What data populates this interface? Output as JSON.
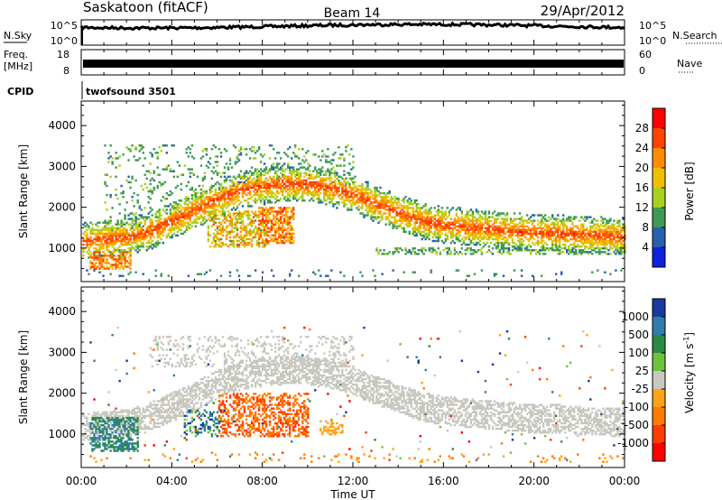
{
  "header": {
    "station": "Saskatoon (fitACF)",
    "beam": "Beam 14",
    "date": "29/Apr/2012"
  },
  "aux_panels": {
    "nsky_label": "N.Sky",
    "nsearch_label": "N.Search",
    "noise_ticks": [
      "10^5",
      "10^0"
    ],
    "freq_label_1": "Freq.",
    "freq_label_2": "[MHz]",
    "freq_ticks": [
      "18",
      "8"
    ],
    "nave_label": "Nave",
    "nave_ticks": [
      "60",
      "0"
    ],
    "cpid_label": "CPID",
    "cpid_value": "twofsound 3501"
  },
  "colorbars": {
    "power": {
      "label": "Power [dB]",
      "ticks": [
        "28",
        "24",
        "20",
        "16",
        "12",
        "8",
        "4"
      ],
      "colors": [
        "#ff0000",
        "#ff4400",
        "#ff8c00",
        "#f0c000",
        "#a8d020",
        "#3e9a55",
        "#2a5fb0",
        "#1020e0"
      ]
    },
    "velocity": {
      "label": "Velocity [m s",
      "label_sup": "-1",
      "label_close": "]",
      "ticks": [
        "1000",
        "500",
        "100",
        "25",
        "-25",
        "-100",
        "-500",
        "-1000"
      ],
      "colors": [
        "#1a3aa0",
        "#2e7dab",
        "#2d8a44",
        "#6dc43c",
        "#c8c8c0",
        "#ffa21a",
        "#ff7a00",
        "#ff3c00",
        "#ff0000"
      ]
    }
  },
  "chart_data": [
    {
      "type": "heatmap",
      "title": "Power",
      "ylabel": "Slant Range [km]",
      "ylim": [
        180,
        4600
      ],
      "yticks": [
        1000,
        2000,
        3000,
        4000
      ],
      "xlim": [
        0,
        24
      ],
      "xticks": [
        "00:00",
        "04:00",
        "08:00",
        "12:00",
        "16:00",
        "20:00",
        "00:00"
      ],
      "zlabel": "Power [dB]",
      "zrange": [
        0,
        30
      ],
      "features": [
        {
          "name": "main echo band",
          "t": [
            0,
            1,
            2,
            3,
            4,
            5,
            6,
            7,
            8,
            9,
            10,
            11,
            12,
            13,
            14,
            15,
            16,
            17,
            18,
            19,
            20,
            21,
            22,
            23,
            24
          ],
          "range_km": [
            1150,
            1200,
            1250,
            1400,
            1650,
            1900,
            2200,
            2400,
            2500,
            2550,
            2550,
            2450,
            2300,
            2050,
            1850,
            1650,
            1550,
            1500,
            1450,
            1400,
            1350,
            1350,
            1300,
            1300,
            1250
          ],
          "power_db": 24
        },
        {
          "name": "upper scatter",
          "t_range": [
            1,
            12
          ],
          "range_km": [
            2700,
            3500
          ],
          "power_db": 8
        },
        {
          "name": "patch 06-08",
          "t_range": [
            5.5,
            8.2
          ],
          "range_km": [
            1000,
            1900
          ],
          "power_db": 22
        },
        {
          "name": "patch 08-09",
          "t_range": [
            7.8,
            9.4
          ],
          "range_km": [
            1100,
            2000
          ],
          "power_db": 20
        },
        {
          "name": "early low band",
          "t_range": [
            0.3,
            2.2
          ],
          "range_km": [
            450,
            900
          ],
          "power_db": 22
        },
        {
          "name": "late lower band",
          "t_range": [
            13,
            24
          ],
          "range_km": [
            800,
            1000
          ],
          "power_db": 10
        }
      ]
    },
    {
      "type": "heatmap",
      "title": "Velocity",
      "ylabel": "Slant Range [km]",
      "ylim": [
        180,
        4600
      ],
      "yticks": [
        1000,
        2000,
        3000,
        4000
      ],
      "xlim": [
        0,
        24
      ],
      "xticks": [
        "00:00",
        "04:00",
        "08:00",
        "12:00",
        "16:00",
        "20:00",
        "00:00"
      ],
      "xlabel": "Time UT",
      "zlabel": "Velocity [m s^-1]",
      "zrange": [
        -1000,
        1000
      ],
      "features": [
        {
          "name": "ground scatter band",
          "t_range": [
            0,
            24
          ],
          "range_km": [
            1200,
            2600
          ],
          "velocity": 0
        },
        {
          "name": "early positive patch",
          "t_range": [
            0.3,
            2.5
          ],
          "range_km": [
            550,
            1400
          ],
          "velocity": 300
        },
        {
          "name": "patch 05-06",
          "t_range": [
            4.5,
            6.2
          ],
          "range_km": [
            900,
            1600
          ],
          "velocity": 200
        },
        {
          "name": "negative patch 06-10",
          "t_range": [
            6,
            10
          ],
          "range_km": [
            900,
            2000
          ],
          "velocity": -400
        },
        {
          "name": "negative patch 11",
          "t_range": [
            10.5,
            11.5
          ],
          "range_km": [
            950,
            1300
          ],
          "velocity": -200
        }
      ]
    }
  ]
}
